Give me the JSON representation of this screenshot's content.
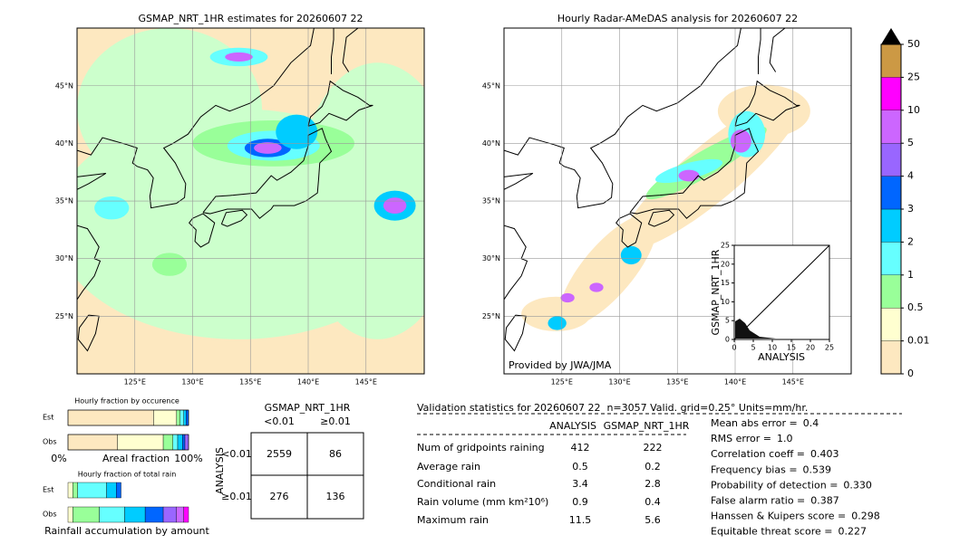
{
  "map_left": {
    "title": "GSMAP_NRT_1HR estimates for 20260607 22",
    "lat_labels": [
      "45°N",
      "40°N",
      "35°N",
      "30°N",
      "25°N"
    ],
    "lon_labels": [
      "125°E",
      "130°E",
      "135°E",
      "140°E",
      "145°E"
    ]
  },
  "map_right": {
    "title": "Hourly Radar-AMeDAS analysis for 20260607 22",
    "credit": "Provided by JWA/JMA",
    "lat_labels": [
      "45°N",
      "40°N",
      "35°N",
      "30°N",
      "25°N"
    ],
    "lon_labels": [
      "125°E",
      "130°E",
      "135°E",
      "140°E",
      "145°E"
    ]
  },
  "scatter": {
    "xlabel": "ANALYSIS",
    "ylabel": "GSMAP_NRT_1HR",
    "xlim": [
      0,
      25
    ],
    "ylim": [
      0,
      25
    ],
    "xticks": [
      0,
      5,
      10,
      15,
      20,
      25
    ],
    "yticks": [
      0,
      5,
      10,
      15,
      20,
      25
    ]
  },
  "colorbar": {
    "ticks": [
      0,
      0.01,
      0.5,
      1,
      2,
      3,
      4,
      5,
      10,
      25,
      50
    ],
    "colors": [
      "#fde8c0",
      "#ffffd0",
      "#99ff99",
      "#66ffff",
      "#00ccff",
      "#0066ff",
      "#9966ff",
      "#cc66ff",
      "#ff00ff",
      "#cc9944"
    ],
    "extend_color": "#000000"
  },
  "occurrence": {
    "title": "Hourly fraction by occurence",
    "rows": [
      "Est",
      "Obs"
    ],
    "xlabel": "Areal fraction",
    "x_min_label": "0%",
    "x_max_label": "100%",
    "xlim": [
      0,
      100
    ],
    "series": [
      {
        "name": "Est",
        "values": [
          71,
          19,
          3,
          3,
          2,
          2
        ]
      },
      {
        "name": "Obs",
        "values": [
          41,
          38,
          8,
          4,
          4,
          2,
          3
        ]
      }
    ]
  },
  "total_rain": {
    "title": "Hourly fraction of total rain",
    "rows": [
      "Est",
      "Obs"
    ],
    "xlabel": "Rainfall accumulation by amount",
    "xlim": [
      0,
      100
    ],
    "series": [
      {
        "name": "Est",
        "values": [
          4,
          4,
          24,
          8,
          4
        ]
      },
      {
        "name": "Obs",
        "values": [
          4,
          22,
          21,
          17,
          15,
          11,
          6,
          4
        ]
      }
    ]
  },
  "contingency": {
    "col_title": "GSMAP_NRT_1HR",
    "row_title": "ANALYSIS",
    "cols": [
      "<0.01",
      "≥0.01"
    ],
    "rows": [
      "<0.01",
      "≥0.01"
    ],
    "cells": [
      [
        2559,
        86
      ],
      [
        276,
        136
      ]
    ]
  },
  "stats": {
    "header": "Validation statistics for 20260607 22  n=3057 Valid. grid=0.25° Units=mm/hr.",
    "cols": [
      "ANALYSIS",
      "GSMAP_NRT_1HR"
    ],
    "rows": [
      {
        "label": "Num of gridpoints raining",
        "values": [
          "412",
          "222"
        ]
      },
      {
        "label": "Average rain",
        "values": [
          "0.5",
          "0.2"
        ]
      },
      {
        "label": "Conditional rain",
        "values": [
          "3.4",
          "2.8"
        ]
      },
      {
        "label": "Rain volume (mm km²10⁶)",
        "values": [
          "0.9",
          "0.4"
        ]
      },
      {
        "label": "Maximum rain",
        "values": [
          "11.5",
          "5.6"
        ]
      }
    ]
  },
  "scores": [
    {
      "label": "Mean abs error =",
      "value": "0.4"
    },
    {
      "label": "RMS error =",
      "value": "1.0"
    },
    {
      "label": "Correlation coeff =",
      "value": "0.403"
    },
    {
      "label": "Frequency bias =",
      "value": "0.539"
    },
    {
      "label": "Probability of detection =",
      "value": "0.330"
    },
    {
      "label": "False alarm ratio =",
      "value": "0.387"
    },
    {
      "label": "Hanssen & Kuipers score =",
      "value": "0.298"
    },
    {
      "label": "Equitable threat score =",
      "value": "0.227"
    }
  ]
}
